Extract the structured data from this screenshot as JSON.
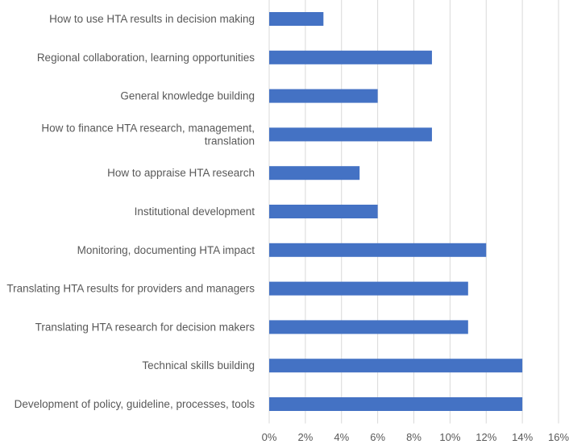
{
  "chart_data": {
    "type": "bar",
    "orientation": "horizontal",
    "title": "",
    "xlabel": "",
    "ylabel": "",
    "categories": [
      [
        "How to use HTA results in decision making"
      ],
      [
        "Regional collaboration, learning opportunities"
      ],
      [
        "General knowledge building"
      ],
      [
        "How to finance HTA research, management,",
        "translation"
      ],
      [
        "How to appraise HTA research"
      ],
      [
        "Institutional development"
      ],
      [
        "Monitoring, documenting HTA impact"
      ],
      [
        "Translating HTA results for providers and managers"
      ],
      [
        "Translating HTA research for decision makers"
      ],
      [
        "Technical skills building"
      ],
      [
        "Development of policy, guideline, processes, tools"
      ]
    ],
    "values": [
      3,
      9,
      6,
      9,
      5,
      6,
      12,
      11,
      11,
      14,
      14
    ],
    "xlim": [
      0,
      16
    ],
    "xticks": [
      "0%",
      "2%",
      "4%",
      "6%",
      "8%",
      "10%",
      "12%",
      "14%",
      "16%"
    ],
    "grid": true,
    "bar_color": "#4472C4",
    "grid_color": "#D9D9D9"
  }
}
